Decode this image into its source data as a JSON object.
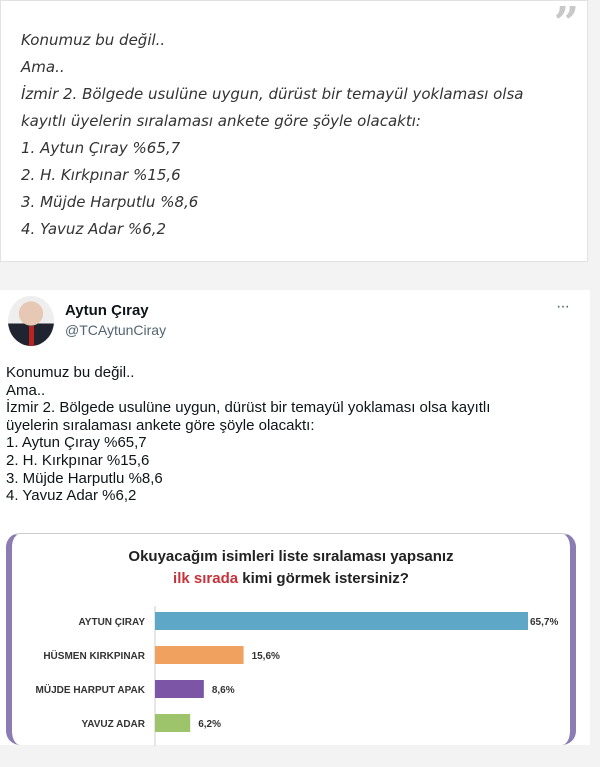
{
  "quote": {
    "icon": "quote-icon",
    "lines": [
      "Konumuz bu değil..",
      "Ama..",
      "İzmir 2. Bölgede usulüne uygun, dürüst bir temayül yoklaması olsa",
      "kayıtlı üyelerin sıralaması ankete göre şöyle olacaktı:",
      "1. Aytun Çıray %65,7",
      "2. H. Kırkpınar %15,6",
      "3. Müjde Harputlu %8,6",
      "4. Yavuz Adar %6,2"
    ]
  },
  "tweet": {
    "name": "Aytun Çıray",
    "handle": "@TCAytunCiray",
    "more": "···",
    "lines": [
      "Konumuz bu değil..",
      "Ama..",
      "İzmir 2. Bölgede usulüne uygun, dürüst bir temayül yoklaması olsa kayıtlı",
      "üyelerin sıralaması ankete göre şöyle olacaktı:",
      "1. Aytun Çıray %65,7",
      "2. H. Kırkpınar %15,6",
      "3. Müjde Harputlu %8,6",
      "4. Yavuz Adar %6,2"
    ]
  },
  "chart_data": {
    "type": "bar",
    "orientation": "horizontal",
    "title_line1": "Okuyacağım isimleri liste sıralaması yapsanız",
    "title_line2_highlight": "ilk sırada",
    "title_line2_rest": " kimi görmek istersiniz?",
    "categories": [
      "AYTUN ÇIRAY",
      "HÜSMEN KIRKPINAR",
      "MÜJDE HARPUT APAK",
      "YAVUZ ADAR"
    ],
    "values": [
      65.7,
      15.6,
      8.6,
      6.2
    ],
    "value_labels": [
      "65,7%",
      "15,6%",
      "8,6%",
      "6,2%"
    ],
    "colors": [
      "#5ea7c6",
      "#f0a160",
      "#7d55a6",
      "#9dc36b"
    ],
    "highlight_color": "#c8323a",
    "grid": false
  }
}
